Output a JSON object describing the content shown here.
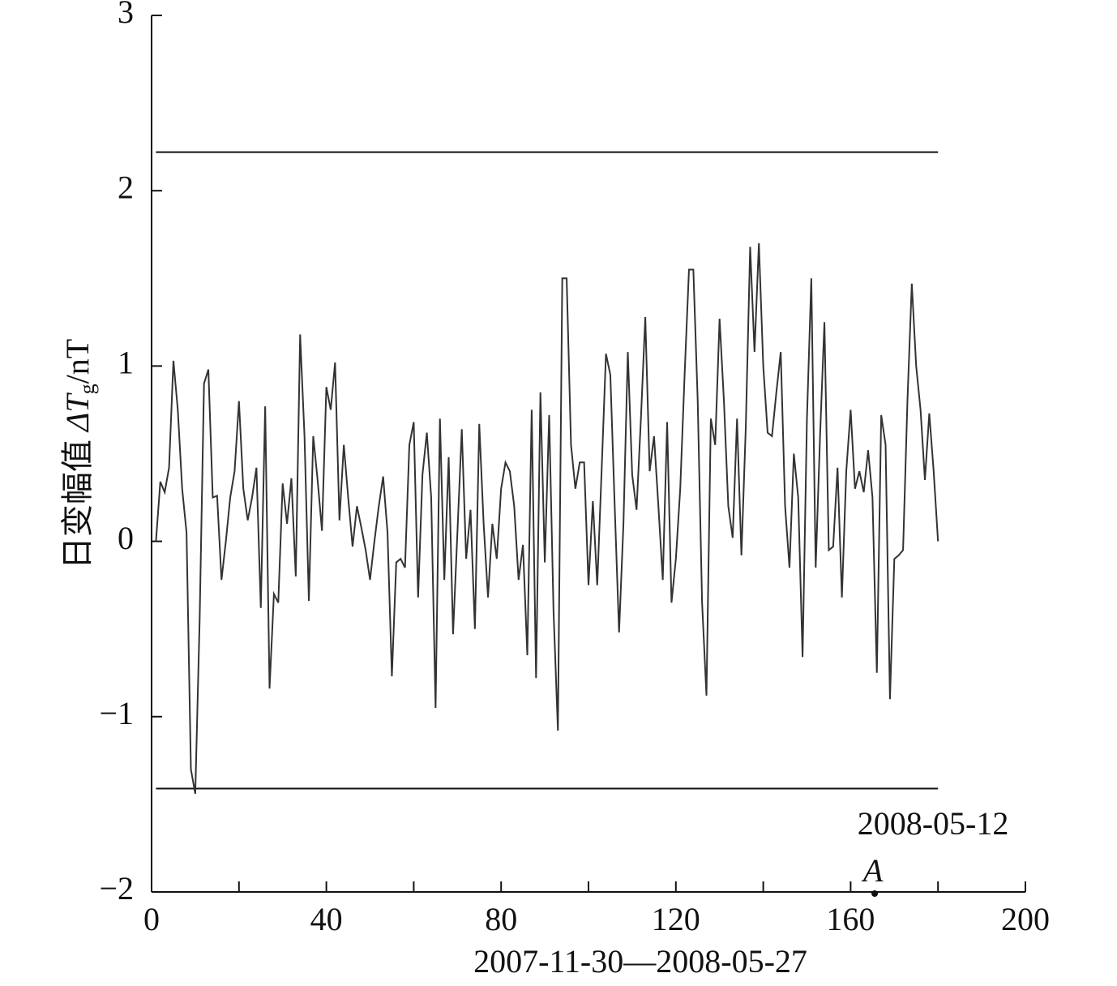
{
  "chart_data": {
    "type": "line",
    "ylabel": {
      "text": "日变幅值 ",
      "symbol": "ΔT",
      "subscript": "g",
      "unit": "/nT"
    },
    "xlabel": "2007-11-30—2008-05-27",
    "x": [
      1,
      2,
      3,
      4,
      5,
      6,
      7,
      8,
      9,
      10,
      11,
      12,
      13,
      14,
      15,
      16,
      17,
      18,
      19,
      20,
      21,
      22,
      23,
      24,
      25,
      26,
      27,
      28,
      29,
      30,
      31,
      32,
      33,
      34,
      35,
      36,
      37,
      38,
      39,
      40,
      41,
      42,
      43,
      44,
      45,
      46,
      47,
      48,
      49,
      50,
      51,
      52,
      53,
      54,
      55,
      56,
      57,
      58,
      59,
      60,
      61,
      62,
      63,
      64,
      65,
      66,
      67,
      68,
      69,
      70,
      71,
      72,
      73,
      74,
      75,
      76,
      77,
      78,
      79,
      80,
      81,
      82,
      83,
      84,
      85,
      86,
      87,
      88,
      89,
      90,
      91,
      92,
      93,
      94,
      95,
      96,
      97,
      98,
      99,
      100,
      101,
      102,
      103,
      104,
      105,
      106,
      107,
      108,
      109,
      110,
      111,
      112,
      113,
      114,
      115,
      116,
      117,
      118,
      119,
      120,
      121,
      122,
      123,
      124,
      125,
      126,
      127,
      128,
      129,
      130,
      131,
      132,
      133,
      134,
      135,
      136,
      137,
      138,
      139,
      140,
      141,
      142,
      143,
      144,
      145,
      146,
      147,
      148,
      149,
      150,
      151,
      152,
      153,
      154,
      155,
      156,
      157,
      158,
      159,
      160,
      161,
      162,
      163,
      164,
      165,
      166,
      167,
      168,
      169,
      170,
      171,
      172,
      173,
      174,
      175,
      176,
      177,
      178,
      179,
      180
    ],
    "values": [
      0,
      0.34,
      0.28,
      0.42,
      1.03,
      0.75,
      0.3,
      0.05,
      -1.3,
      -1.44,
      -0.45,
      0.9,
      0.98,
      0.25,
      0.26,
      -0.22,
      0,
      0.25,
      0.4,
      0.8,
      0.3,
      0.12,
      0.25,
      0.42,
      -0.38,
      0.77,
      -0.84,
      -0.3,
      -0.35,
      0.33,
      0.1,
      0.36,
      -0.2,
      1.18,
      0.6,
      -0.34,
      0.6,
      0.35,
      0.06,
      0.88,
      0.75,
      1.02,
      0.12,
      0.55,
      0.25,
      -0.03,
      0.2,
      0.08,
      -0.05,
      -0.22,
      0,
      0.2,
      0.37,
      0.05,
      -0.77,
      -0.12,
      -0.1,
      -0.15,
      0.55,
      0.68,
      -0.32,
      0.38,
      0.62,
      0.25,
      -0.95,
      0.7,
      -0.22,
      0.48,
      -0.53,
      0.05,
      0.64,
      -0.1,
      0.18,
      -0.5,
      0.67,
      0.1,
      -0.32,
      0.1,
      -0.1,
      0.3,
      0.45,
      0.4,
      0.2,
      -0.22,
      -0.02,
      -0.65,
      0.75,
      -0.78,
      0.85,
      -0.12,
      0.72,
      -0.4,
      -1.08,
      1.5,
      1.5,
      0.55,
      0.3,
      0.45,
      0.45,
      -0.25,
      0.23,
      -0.25,
      0.4,
      1.07,
      0.95,
      0.2,
      -0.52,
      0.1,
      1.08,
      0.38,
      0.18,
      0.7,
      1.28,
      0.4,
      0.6,
      0.2,
      -0.22,
      0.68,
      -0.35,
      -0.1,
      0.3,
      0.95,
      1.55,
      1.55,
      0.8,
      -0.35,
      -0.88,
      0.7,
      0.55,
      1.27,
      0.8,
      0.2,
      0.02,
      0.7,
      -0.08,
      0.65,
      1.68,
      1.08,
      1.7,
      1,
      0.62,
      0.6,
      0.85,
      1.08,
      0.2,
      -0.15,
      0.5,
      0.25,
      -0.66,
      0.7,
      1.5,
      -0.15,
      0.6,
      1.25,
      -0.05,
      -0.03,
      0.42,
      -0.32,
      0.4,
      0.75,
      0.3,
      0.4,
      0.28,
      0.52,
      0.25,
      -0.75,
      0.72,
      0.55,
      -0.9,
      -0.1,
      -0.08,
      -0.05,
      0.8,
      1.47,
      1,
      0.75,
      0.35,
      0.73,
      0.4,
      0
    ],
    "color": "#333333",
    "hlines": [
      2.22,
      -1.41
    ],
    "xlim": [
      0,
      200
    ],
    "xticks": [
      0,
      40,
      80,
      120,
      160,
      200
    ],
    "xminor_ticks": [
      20,
      60,
      100,
      140,
      180
    ],
    "ylim": [
      -2,
      3
    ],
    "yticks": [
      {
        "value": -2,
        "label": "−2"
      },
      {
        "value": -1,
        "label": "−1"
      },
      0,
      1,
      2,
      3
    ],
    "annotation": {
      "label": "2008-05-12",
      "marker": "A",
      "x": 165.5
    }
  }
}
